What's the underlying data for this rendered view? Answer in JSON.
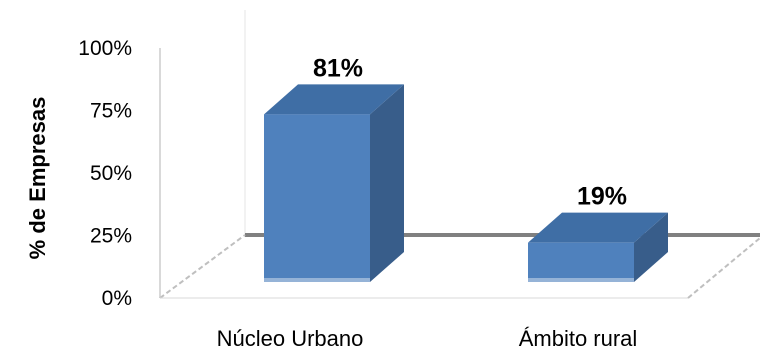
{
  "chart_data": {
    "type": "bar",
    "categories": [
      "Núcleo Urbano",
      "Ámbito rural"
    ],
    "values": [
      81,
      19
    ],
    "data_labels": [
      "81%",
      "19%"
    ],
    "ylabel": "% de Empresas",
    "yticks": [
      "0%",
      "25%",
      "50%",
      "75%",
      "100%"
    ],
    "ylim": [
      0,
      100
    ],
    "grid": false,
    "style": "3d-column",
    "colors": {
      "bar_front": "#4f81bd",
      "bar_side": "#385d8a",
      "bar_top": "#3f6ea5",
      "wall": "#d9d9d9",
      "floor_line": "#808080"
    }
  }
}
